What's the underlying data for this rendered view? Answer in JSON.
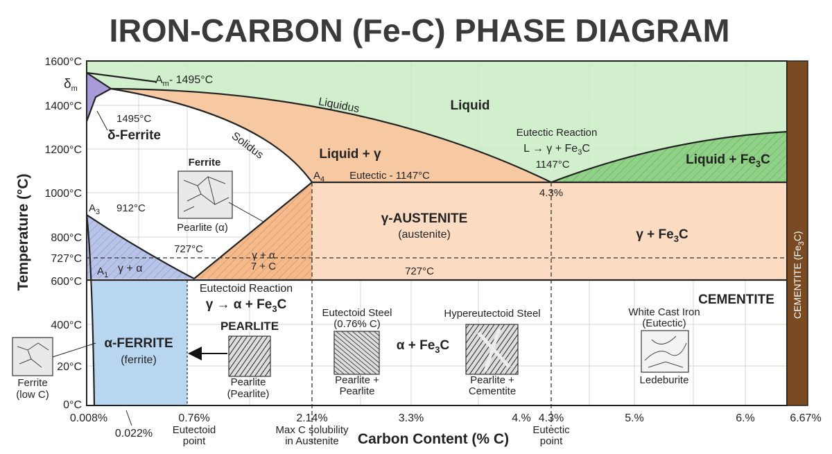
{
  "title": "IRON-CARBON (Fe-C) PHASE DIAGRAM",
  "y_axis": {
    "title": "Temperature (°C)",
    "ticks": [
      "1600°C",
      "1400°C",
      "1200°C",
      "1000°C",
      "800°C",
      "727°C",
      "600°C",
      "400°C",
      "20°C",
      "0°C"
    ]
  },
  "x_axis": {
    "title": "Carbon Content (% C)",
    "ticks": [
      "0.008%",
      "0.022%",
      "0.76%",
      "2.14%",
      "3.3%",
      "4.%",
      "4.3%",
      "5.%",
      "6.%",
      "6.67%"
    ],
    "notes": {
      "eutectoid": [
        "Eutectoid",
        "point"
      ],
      "max_solubility": [
        "Max C solubility",
        "in Austenite"
      ],
      "eutectic": [
        "Eutectic",
        "point"
      ]
    }
  },
  "labels": {
    "delta_m": [
      "δ",
      "m"
    ],
    "a_m": [
      "A",
      "m",
      "- 1495°C"
    ],
    "delta_temp": "1495°C",
    "delta_ferrite": "δ-Ferrite",
    "liquidus": "Liquidus",
    "solidus": "Solidus",
    "liquid": "Liquid",
    "liquid_gamma": "Liquid + γ",
    "a4": [
      "A",
      "4"
    ],
    "eutectic_line": "Eutectic - 1147°C",
    "eutectic_reaction": {
      "title": "Eutectic Reaction",
      "equation": [
        "L → γ + Fe",
        "3",
        "C"
      ],
      "temp": "1147°C"
    },
    "eutectic_comp": "4.3%",
    "liquid_fe3c": [
      "Liquid + Fe",
      "3",
      "C"
    ],
    "a3": [
      "A",
      "3"
    ],
    "a3_temp": "912°C",
    "austenite": [
      "γ-AUSTENITE",
      "(austenite)"
    ],
    "gamma_fe3c": [
      "γ + Fe",
      "3",
      "C"
    ],
    "a1_temp": "727°C",
    "gamma_alpha_c": [
      "γ + α",
      "7 + C"
    ],
    "a1": [
      "A",
      "1"
    ],
    "gamma_alpha": "γ + α",
    "eutectoid_temp": "727°C",
    "eutectoid_reaction": {
      "title": "Eutectoid Reaction",
      "equation": [
        "γ → α + Fe",
        "3",
        "C"
      ]
    },
    "pearlite": "PEARLITE",
    "alpha_ferrite": [
      "α-FERRITE",
      "(ferrite)"
    ],
    "alpha_fe3c": [
      "α + Fe",
      "3",
      "C"
    ],
    "cementite": "CEMENTITE",
    "cementite_bar": [
      "CEMENTITE (Fe",
      "3",
      "C)"
    ]
  },
  "micrographs": {
    "ferrite_upper": {
      "title": "Ferrite",
      "caption": "Pearlite (α)"
    },
    "ferrite_low_c": {
      "caption": [
        "Ferrite",
        "(low C)"
      ]
    },
    "pearlite": {
      "caption": [
        "Pearlite",
        "(Pearlite)"
      ]
    },
    "eutectoid_steel": {
      "title": [
        "Eutectoid Steel",
        "(0.76% C)"
      ],
      "caption": [
        "Pearlite +",
        "Pearlite"
      ]
    },
    "hypereutectoid_steel": {
      "title": "Hypereutectoid Steel",
      "caption": [
        "Pearlite +",
        "Cementite"
      ]
    },
    "white_cast_iron": {
      "title": [
        "White Cast Iron",
        "(Eutectic)"
      ],
      "caption": "Ledeburite"
    }
  }
}
